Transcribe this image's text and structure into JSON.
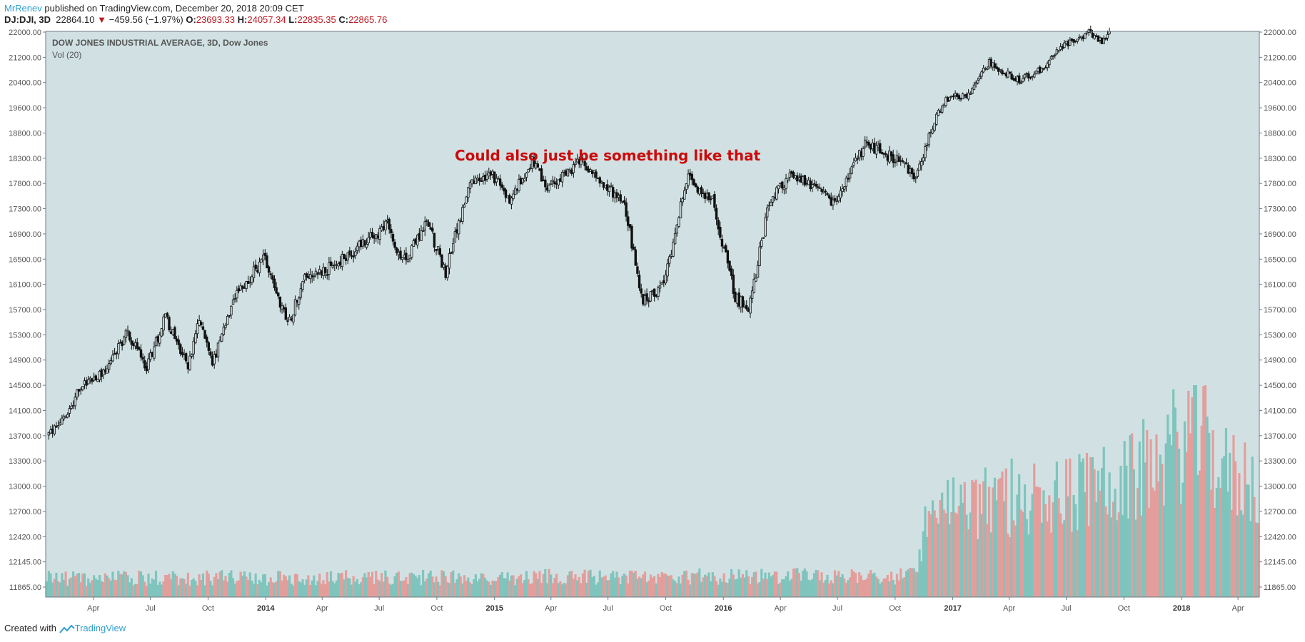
{
  "header": {
    "author": "MrRenev",
    "published": "published on TradingView.com, December 20, 2018 20:09 CET",
    "symbol": "DJ:DJI, 3D",
    "last": "22864.10",
    "change": "−459.56 (−1.97%)",
    "o_label": "O:",
    "o": "23693.33",
    "h_label": "H:",
    "h": "24057.34",
    "l_label": "L:",
    "l": "22835.35",
    "c_label": "C:",
    "c": "22865.76"
  },
  "legend": {
    "title": "DOW JONES INDUSTRIAL AVERAGE, 3D, Dow Jones",
    "volume": "Vol (20)"
  },
  "annotation": "Could also just be something like that",
  "footer": {
    "created": "Created with",
    "brand": "TradingView"
  },
  "colors": {
    "background": "#d1e1e3",
    "candle": "#111111",
    "vol_up": "#7fc4bd",
    "vol_down": "#e39e9c",
    "annotation": "#cc0a0a",
    "axis_text": "#555555"
  },
  "chart_data": {
    "type": "candlestick",
    "timeframe": "3D",
    "x_range": [
      "2013-01-15",
      "2018-05-05"
    ],
    "y_ticks": [
      "11865.00",
      "12145.00",
      "12420.00",
      "12700.00",
      "13000.00",
      "13300.00",
      "13700.00",
      "14100.00",
      "14500.00",
      "14900.00",
      "15300.00",
      "15700.00",
      "16100.00",
      "16500.00",
      "16900.00",
      "17300.00",
      "17800.00",
      "18300.00",
      "18800.00",
      "19600.00",
      "20400.00",
      "21200.00",
      "22000.00"
    ],
    "x_ticks": [
      {
        "label": "Apr",
        "date": "2013-04-01",
        "year": false
      },
      {
        "label": "Jul",
        "date": "2013-07-01",
        "year": false
      },
      {
        "label": "Oct",
        "date": "2013-10-01",
        "year": false
      },
      {
        "label": "2014",
        "date": "2014-01-01",
        "year": true
      },
      {
        "label": "Apr",
        "date": "2014-04-01",
        "year": false
      },
      {
        "label": "Jul",
        "date": "2014-07-01",
        "year": false
      },
      {
        "label": "Oct",
        "date": "2014-10-01",
        "year": false
      },
      {
        "label": "2015",
        "date": "2015-01-01",
        "year": true
      },
      {
        "label": "Apr",
        "date": "2015-04-01",
        "year": false
      },
      {
        "label": "Jul",
        "date": "2015-07-01",
        "year": false
      },
      {
        "label": "Oct",
        "date": "2015-10-01",
        "year": false
      },
      {
        "label": "2016",
        "date": "2016-01-01",
        "year": true
      },
      {
        "label": "Apr",
        "date": "2016-04-01",
        "year": false
      },
      {
        "label": "Jul",
        "date": "2016-07-01",
        "year": false
      },
      {
        "label": "Oct",
        "date": "2016-10-01",
        "year": false
      },
      {
        "label": "2017",
        "date": "2017-01-01",
        "year": true
      },
      {
        "label": "Apr",
        "date": "2017-04-01",
        "year": false
      },
      {
        "label": "Jul",
        "date": "2017-07-01",
        "year": false
      },
      {
        "label": "Oct",
        "date": "2017-10-01",
        "year": false
      },
      {
        "label": "2018",
        "date": "2018-01-01",
        "year": true
      },
      {
        "label": "Apr",
        "date": "2018-04-01",
        "year": false
      }
    ],
    "price_path": [
      [
        "2013-01-18",
        13700
      ],
      [
        "2013-02-15",
        14000
      ],
      [
        "2013-03-15",
        14500
      ],
      [
        "2013-04-20",
        14750
      ],
      [
        "2013-05-25",
        15350
      ],
      [
        "2013-06-25",
        14800
      ],
      [
        "2013-07-25",
        15600
      ],
      [
        "2013-08-30",
        14800
      ],
      [
        "2013-09-18",
        15550
      ],
      [
        "2013-10-08",
        14850
      ],
      [
        "2013-11-15",
        15900
      ],
      [
        "2013-12-31",
        16550
      ],
      [
        "2014-02-05",
        15450
      ],
      [
        "2014-03-05",
        16250
      ],
      [
        "2014-04-15",
        16350
      ],
      [
        "2014-05-30",
        16700
      ],
      [
        "2014-07-15",
        17050
      ],
      [
        "2014-08-05",
        16400
      ],
      [
        "2014-09-15",
        17100
      ],
      [
        "2014-10-15",
        16300
      ],
      [
        "2014-11-25",
        17800
      ],
      [
        "2014-12-30",
        17950
      ],
      [
        "2015-01-25",
        17450
      ],
      [
        "2015-03-02",
        18250
      ],
      [
        "2015-03-25",
        17700
      ],
      [
        "2015-05-20",
        18250
      ],
      [
        "2015-06-30",
        17700
      ],
      [
        "2015-07-25",
        17500
      ],
      [
        "2015-08-26",
        15800
      ],
      [
        "2015-09-28",
        16100
      ],
      [
        "2015-11-05",
        17900
      ],
      [
        "2015-12-15",
        17450
      ],
      [
        "2016-01-20",
        15900
      ],
      [
        "2016-02-11",
        15700
      ],
      [
        "2016-03-15",
        17450
      ],
      [
        "2016-04-20",
        18000
      ],
      [
        "2016-06-27",
        17400
      ],
      [
        "2016-08-15",
        18600
      ],
      [
        "2016-10-05",
        18250
      ],
      [
        "2016-11-04",
        17900
      ],
      [
        "2016-12-20",
        19900
      ],
      [
        "2017-01-25",
        20000
      ],
      [
        "2017-03-01",
        21050
      ],
      [
        "2017-04-15",
        20450
      ],
      [
        "2017-05-20",
        20800
      ],
      [
        "2017-06-20",
        21450
      ],
      [
        "2017-08-05",
        22000
      ],
      [
        "2017-08-25",
        21700
      ],
      [
        "2017-09-10",
        22000
      ]
    ],
    "volume_path": [
      [
        "2013-01-15",
        0.4
      ],
      [
        "2016-11-01",
        0.45
      ],
      [
        "2016-11-25",
        1.85
      ],
      [
        "2017-01-15",
        2.0
      ],
      [
        "2017-06-01",
        2.2
      ],
      [
        "2017-10-01",
        2.4
      ],
      [
        "2018-01-25",
        3.6
      ],
      [
        "2018-03-15",
        2.6
      ],
      [
        "2018-05-05",
        2.5
      ]
    ]
  }
}
